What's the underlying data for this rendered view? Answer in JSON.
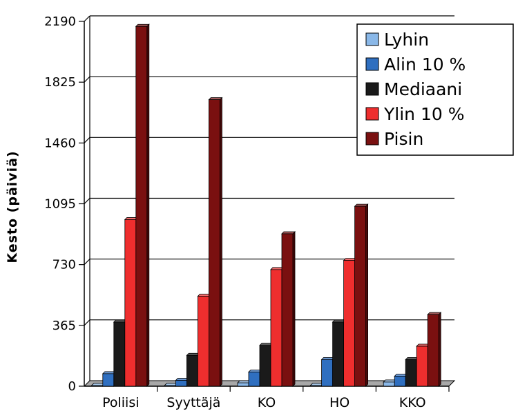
{
  "chart_data": {
    "type": "bar",
    "ylabel": "Kesto (päiviä)",
    "xlabel": "",
    "title": "",
    "categories": [
      "Poliisi",
      "Syyttäjä",
      "KO",
      "HO",
      "KKO"
    ],
    "yticks": [
      "0",
      "365",
      "730",
      "1095",
      "1460",
      "1825",
      "2190"
    ],
    "ylim": [
      0,
      2190
    ],
    "grid": true,
    "legend_position": "top-right",
    "series": [
      {
        "name": "Lyhin",
        "color": "#8ab8e8",
        "values": [
          5,
          5,
          20,
          5,
          25
        ]
      },
      {
        "name": "Alin 10 %",
        "color": "#2f6fc0",
        "values": [
          75,
          35,
          85,
          160,
          60
        ]
      },
      {
        "name": "Mediaani",
        "color": "#1a1a1a",
        "values": [
          385,
          185,
          245,
          385,
          160
        ]
      },
      {
        "name": "Ylin 10 %",
        "color": "#ee2e2e",
        "values": [
          1000,
          540,
          700,
          755,
          240
        ]
      },
      {
        "name": "Pisin",
        "color": "#7a1010",
        "values": [
          2160,
          1720,
          915,
          1080,
          430
        ]
      }
    ]
  }
}
